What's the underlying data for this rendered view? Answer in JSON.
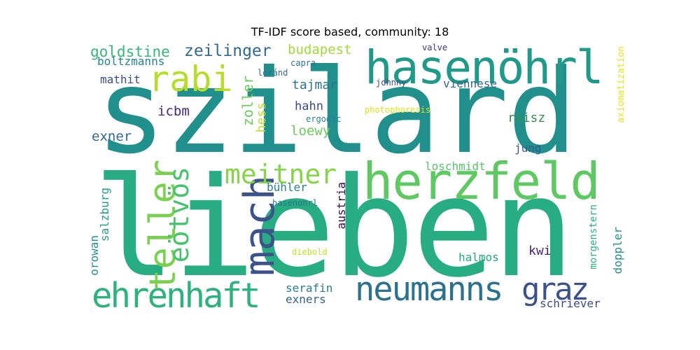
{
  "figure": {
    "title": "TF-IDF score based, community: 18"
  },
  "words": [
    {
      "text": "szilard",
      "color": "#21908d"
    },
    {
      "text": "lieben",
      "color": "#27ad81"
    },
    {
      "text": "hasenöhrl",
      "color": "#1f9a8a"
    },
    {
      "text": "herzfeld",
      "color": "#5ec962"
    },
    {
      "text": "neumanns",
      "color": "#2c728e"
    },
    {
      "text": "ehrenhaft",
      "color": "#2db27d"
    },
    {
      "text": "mach",
      "color": "#3b528b"
    },
    {
      "text": "rabi",
      "color": "#b5de2b"
    },
    {
      "text": "teller",
      "color": "#7ad151"
    },
    {
      "text": "eötvös",
      "color": "#4ac16d"
    },
    {
      "text": "meitner",
      "color": "#86d549"
    },
    {
      "text": "graz",
      "color": "#3b528b"
    },
    {
      "text": "zeilinger",
      "color": "#31688e"
    },
    {
      "text": "goldstine",
      "color": "#35b779"
    },
    {
      "text": "budapest",
      "color": "#a0da39"
    },
    {
      "text": "boltzmanns",
      "color": "#26828e"
    },
    {
      "text": "mathit",
      "color": "#3e4a89"
    },
    {
      "text": "icbm",
      "color": "#482878"
    },
    {
      "text": "exner",
      "color": "#31688e"
    },
    {
      "text": "zoller",
      "color": "#6ccd5a"
    },
    {
      "text": "hess",
      "color": "#bddf26"
    },
    {
      "text": "tajmar",
      "color": "#2c728e"
    },
    {
      "text": "hahn",
      "color": "#3e4a89"
    },
    {
      "text": "loewy",
      "color": "#6ccd5a"
    },
    {
      "text": "viennese",
      "color": "#31688e"
    },
    {
      "text": "reisz",
      "color": "#3b8b59"
    },
    {
      "text": "jung",
      "color": "#38598c"
    },
    {
      "text": "loschmidt",
      "color": "#54c568"
    },
    {
      "text": "bühler",
      "color": "#26828e"
    },
    {
      "text": "austria",
      "color": "#440154"
    },
    {
      "text": "salzburg",
      "color": "#1f9e89"
    },
    {
      "text": "orowan",
      "color": "#21918c"
    },
    {
      "text": "halmos",
      "color": "#22a884"
    },
    {
      "text": "kwi",
      "color": "#482878"
    },
    {
      "text": "morgenstern",
      "color": "#2db27d"
    },
    {
      "text": "doppler",
      "color": "#21918c"
    },
    {
      "text": "schriever",
      "color": "#3e4a89"
    },
    {
      "text": "serafin",
      "color": "#287d8e"
    },
    {
      "text": "exners",
      "color": "#33638d"
    },
    {
      "text": "axiomatization",
      "color": "#e5e419"
    },
    {
      "text": "valve",
      "color": "#46337e"
    },
    {
      "text": "capra",
      "color": "#2c728e"
    },
    {
      "text": "loránd",
      "color": "#31688e"
    },
    {
      "text": "johnny",
      "color": "#3e4a89"
    },
    {
      "text": "photophoresis",
      "color": "#dde318"
    },
    {
      "text": "ergodic",
      "color": "#26828e"
    },
    {
      "text": "hasenohrl",
      "color": "#2c728e"
    },
    {
      "text": "diebold",
      "color": "#c2df23"
    },
    {
      "text": "",
      "color": "#3e4a89"
    },
    {
      "text": "",
      "color": "#3e4a89"
    }
  ]
}
